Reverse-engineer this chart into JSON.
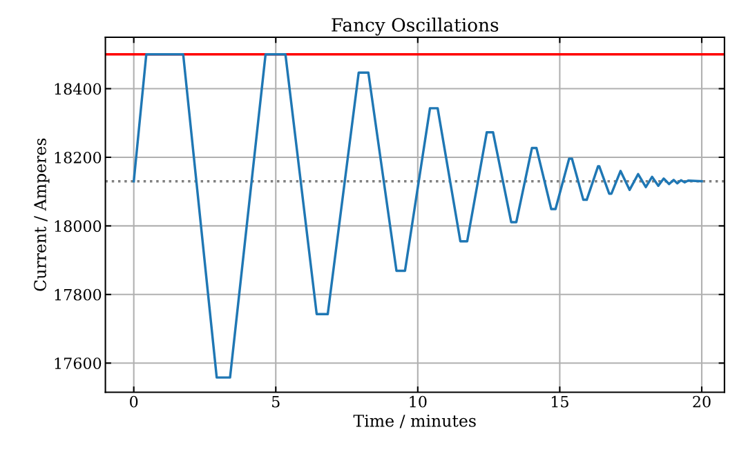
{
  "chart_data": {
    "type": "line",
    "title": "Fancy Oscillations",
    "xlabel": "Time / minutes",
    "ylabel": "Current / Amperes",
    "x": [
      0,
      0.44,
      1.74,
      2.92,
      3.39,
      4.64,
      5.34,
      6.44,
      6.83,
      7.92,
      8.26,
      9.25,
      9.55,
      10.43,
      10.7,
      11.5,
      11.74,
      12.43,
      12.65,
      13.29,
      13.47,
      14.02,
      14.18,
      14.7,
      14.85,
      15.33,
      15.43,
      15.83,
      15.95,
      16.35,
      16.39,
      16.74,
      16.82,
      17.14,
      17.46,
      17.76,
      18.03,
      18.25,
      18.47,
      18.66,
      18.85,
      19.01,
      19.14,
      19.27,
      19.4,
      19.52,
      20
    ],
    "series": [
      {
        "color": "#1f77b4",
        "values": [
          18130,
          18500,
          18500,
          17558,
          17558,
          18500,
          18500,
          17743,
          17743,
          18447,
          18447,
          17869,
          17869,
          18343,
          18343,
          17955,
          17955,
          18273,
          18273,
          18011,
          18011,
          18227,
          18227,
          18049,
          18049,
          18196,
          18196,
          18076,
          18076,
          18174,
          18174,
          18094,
          18094,
          18160,
          18105,
          18151,
          18113,
          18143,
          18117,
          18138,
          18122,
          18134,
          18124,
          18133,
          18127,
          18132,
          18130
        ]
      }
    ],
    "xlim": [
      -1,
      20.8
    ],
    "xticks": [
      0,
      5,
      10,
      15,
      20
    ],
    "ylim": [
      17515,
      18550
    ],
    "yticks": [
      17600,
      17800,
      18000,
      18200,
      18400
    ],
    "ref_lines": [
      {
        "axis": "y",
        "value": 18500,
        "color": "#ff0000",
        "line_style": "solid"
      },
      {
        "axis": "y",
        "value": 18130,
        "color": "#808080",
        "line_style": "dotted"
      }
    ],
    "grid": true,
    "legend": false,
    "marker": "none",
    "line_style": "solid"
  }
}
